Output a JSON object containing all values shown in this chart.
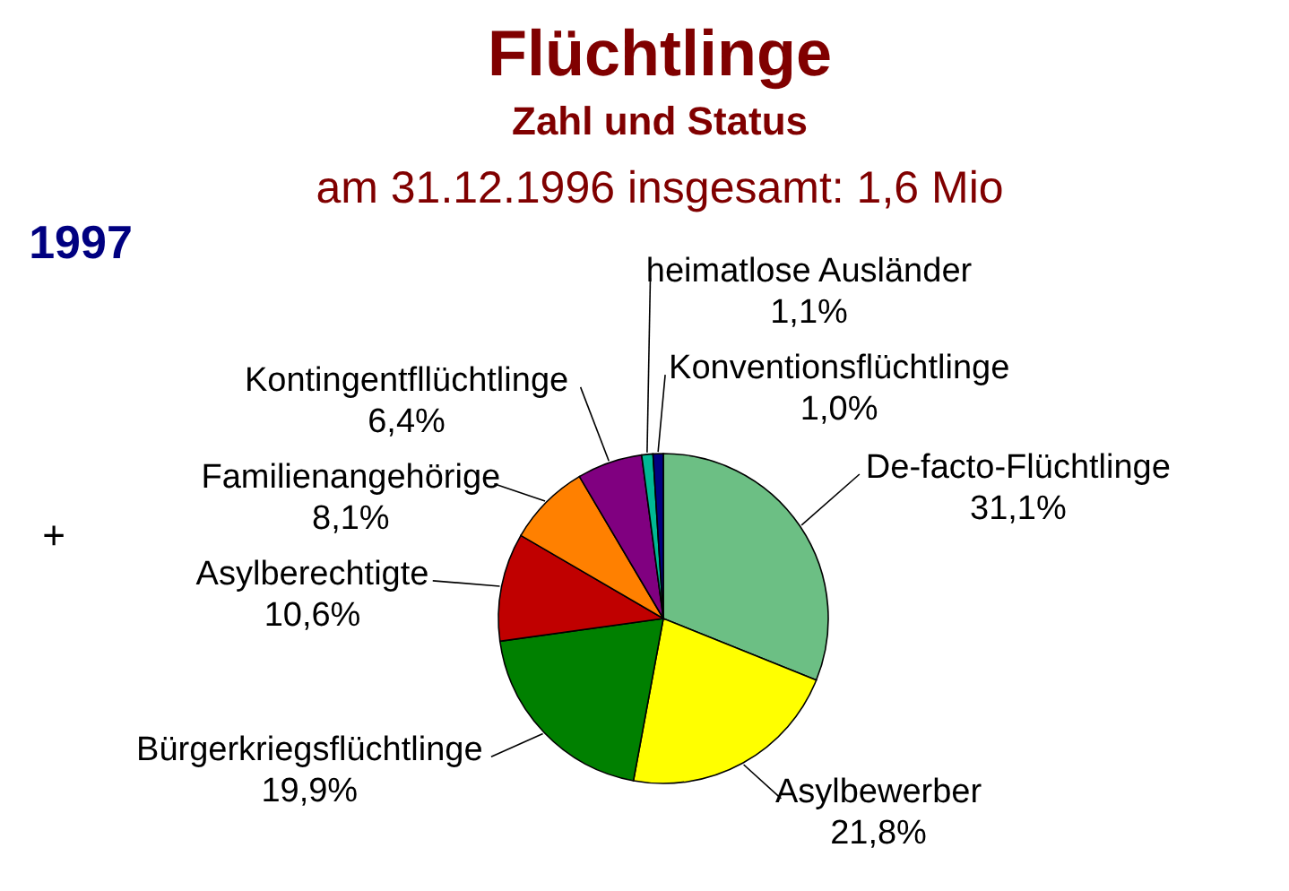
{
  "chart_data": {
    "type": "pie",
    "title": "Flüchtlinge",
    "subtitle": "Zahl und Status",
    "annotations": [
      "am 31.12.1996 insgesamt: 1,6 Mio",
      "1997",
      "+"
    ],
    "categories": [
      "De-facto-Flüchtlinge",
      "Asylbewerber",
      "Bürgerkriegsflüchtlinge",
      "Asylberechtigte",
      "Familienangehörige",
      "Kontingentfllüchtlinge",
      "heimatlose Ausländer",
      "Konventionsflüchtlinge"
    ],
    "values": [
      31.1,
      21.8,
      19.9,
      10.6,
      8.1,
      6.4,
      1.1,
      1.0
    ],
    "value_labels": [
      "31,1%",
      "21,8%",
      "19,9%",
      "10,6%",
      "8,1%",
      "6,4%",
      "1,1%",
      "1,0%"
    ],
    "colors": [
      "#6cbf84",
      "#ffff00",
      "#008000",
      "#c00000",
      "#ff8000",
      "#800080",
      "#00b894",
      "#000080"
    ]
  }
}
